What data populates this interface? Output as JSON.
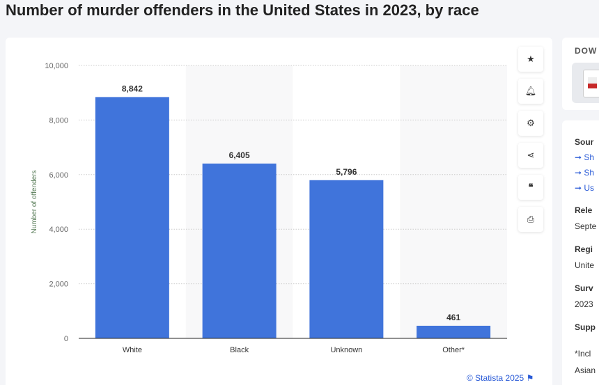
{
  "title": "Number of murder offenders in the United States in 2023, by race",
  "chart_data": {
    "type": "bar",
    "categories": [
      "White",
      "Black",
      "Unknown",
      "Other*"
    ],
    "values": [
      8842,
      6405,
      5796,
      461
    ],
    "ylabel": "Number of offenders",
    "ylim": [
      0,
      10000
    ],
    "yticks": [
      0,
      2000,
      4000,
      6000,
      8000,
      10000
    ],
    "grid": true,
    "bar_color": "#4074db"
  },
  "tools": [
    "star-icon",
    "bell-icon",
    "gear-icon",
    "share-icon",
    "quote-icon",
    "print-icon"
  ],
  "credit": "© Statista 2025",
  "side": {
    "download": "DOW",
    "source": "Sour",
    "links": [
      "Sh",
      "Sh",
      "Us"
    ],
    "release_label": "Rele",
    "release": "Septe",
    "region_label": "Regi",
    "region": "Unite",
    "survey_label": "Surv",
    "survey": "2023",
    "supp_label": "Supp",
    "note1": "*Incl",
    "note2": "Asian"
  }
}
